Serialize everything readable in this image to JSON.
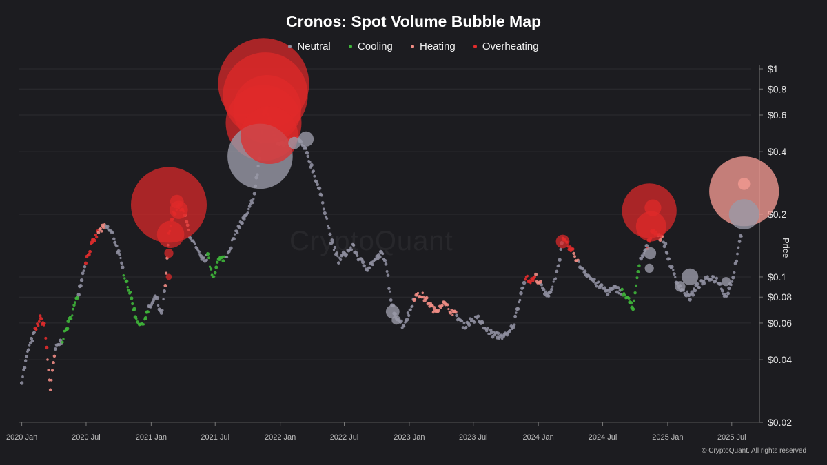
{
  "title": "Cronos: Spot Volume Bubble Map",
  "watermark": "CryptoQuant",
  "copyright": "© CryptoQuant. All rights reserved",
  "colors": {
    "background": "#1c1c20",
    "grid": "#2c2c31",
    "neutral": "#8e8e9e",
    "cooling": "#3fb53a",
    "heating": "#f08c84",
    "overheating": "#e22c2c"
  },
  "legend": [
    {
      "name": "Neutral",
      "key": "neutral"
    },
    {
      "name": "Cooling",
      "key": "cooling"
    },
    {
      "name": "Heating",
      "key": "heating"
    },
    {
      "name": "Overheating",
      "key": "overheating"
    }
  ],
  "chart_data": {
    "type": "scatter",
    "title": "Cronos: Spot Volume Bubble Map",
    "ylabel": "Price",
    "yscale": "log",
    "ylim": [
      0.02,
      1
    ],
    "xlim": [
      "2019-12-25",
      "2025-08-25"
    ],
    "grid": "horizontal",
    "legend_position": "top-center",
    "x_ticks": [
      {
        "label": "2020 Jan",
        "date": "2020-01-01"
      },
      {
        "label": "2020 Jul",
        "date": "2020-07-01"
      },
      {
        "label": "2021 Jan",
        "date": "2021-01-01"
      },
      {
        "label": "2021 Jul",
        "date": "2021-07-01"
      },
      {
        "label": "2022 Jan",
        "date": "2022-01-01"
      },
      {
        "label": "2022 Jul",
        "date": "2022-07-01"
      },
      {
        "label": "2023 Jan",
        "date": "2023-01-01"
      },
      {
        "label": "2023 Jul",
        "date": "2023-07-01"
      },
      {
        "label": "2024 Jan",
        "date": "2024-01-01"
      },
      {
        "label": "2024 Jul",
        "date": "2024-07-01"
      },
      {
        "label": "2025 Jan",
        "date": "2025-01-01"
      },
      {
        "label": "2025 Jul",
        "date": "2025-07-01"
      }
    ],
    "y_ticks": [
      {
        "label": "$1",
        "value": 1
      },
      {
        "label": "$0.8",
        "value": 0.8
      },
      {
        "label": "$0.6",
        "value": 0.6
      },
      {
        "label": "$0.4",
        "value": 0.4
      },
      {
        "label": "$0.2",
        "value": 0.2
      },
      {
        "label": "$0.1",
        "value": 0.1
      },
      {
        "label": "$0.08",
        "value": 0.08
      },
      {
        "label": "$0.06",
        "value": 0.06
      },
      {
        "label": "$0.04",
        "value": 0.04
      },
      {
        "label": "$0.02",
        "value": 0.02
      }
    ],
    "price_path": [
      [
        "2020-01-01",
        0.032,
        "neutral"
      ],
      [
        "2020-01-20",
        0.045,
        "neutral"
      ],
      [
        "2020-02-08",
        0.055,
        "overheating"
      ],
      [
        "2020-02-22",
        0.063,
        "overheating"
      ],
      [
        "2020-03-06",
        0.058,
        "overheating"
      ],
      [
        "2020-03-14",
        0.04,
        "heating"
      ],
      [
        "2020-03-22",
        0.029,
        "heating"
      ],
      [
        "2020-04-05",
        0.045,
        "neutral"
      ],
      [
        "2020-04-25",
        0.05,
        "cooling"
      ],
      [
        "2020-05-20",
        0.065,
        "cooling"
      ],
      [
        "2020-06-10",
        0.085,
        "neutral"
      ],
      [
        "2020-06-30",
        0.12,
        "overheating"
      ],
      [
        "2020-07-15",
        0.14,
        "overheating"
      ],
      [
        "2020-08-05",
        0.165,
        "heating"
      ],
      [
        "2020-08-25",
        0.175,
        "neutral"
      ],
      [
        "2020-09-15",
        0.16,
        "neutral"
      ],
      [
        "2020-10-01",
        0.13,
        "neutral"
      ],
      [
        "2020-10-15",
        0.105,
        "cooling"
      ],
      [
        "2020-11-01",
        0.085,
        "cooling"
      ],
      [
        "2020-11-20",
        0.063,
        "cooling"
      ],
      [
        "2020-12-05",
        0.058,
        "cooling"
      ],
      [
        "2020-12-25",
        0.07,
        "neutral"
      ],
      [
        "2021-01-15",
        0.08,
        "neutral"
      ],
      [
        "2021-01-30",
        0.065,
        "neutral"
      ],
      [
        "2021-02-10",
        0.09,
        "heating"
      ],
      [
        "2021-02-20",
        0.16,
        "overheating"
      ],
      [
        "2021-03-05",
        0.2,
        "overheating"
      ],
      [
        "2021-03-20",
        0.22,
        "overheating"
      ],
      [
        "2021-04-05",
        0.2,
        "heating"
      ],
      [
        "2021-04-20",
        0.16,
        "neutral"
      ],
      [
        "2021-05-05",
        0.14,
        "neutral"
      ],
      [
        "2021-05-25",
        0.12,
        "neutral"
      ],
      [
        "2021-06-10",
        0.125,
        "cooling"
      ],
      [
        "2021-06-25",
        0.1,
        "cooling"
      ],
      [
        "2021-07-10",
        0.12,
        "cooling"
      ],
      [
        "2021-08-01",
        0.125,
        "neutral"
      ],
      [
        "2021-08-20",
        0.15,
        "neutral"
      ],
      [
        "2021-09-10",
        0.18,
        "neutral"
      ],
      [
        "2021-10-01",
        0.2,
        "neutral"
      ],
      [
        "2021-10-20",
        0.25,
        "neutral"
      ],
      [
        "2021-11-05",
        0.4,
        "overheating"
      ],
      [
        "2021-11-15",
        0.6,
        "overheating"
      ],
      [
        "2021-11-25",
        0.65,
        "overheating"
      ],
      [
        "2021-12-10",
        0.5,
        "overheating"
      ],
      [
        "2021-12-25",
        0.45,
        "heating"
      ],
      [
        "2022-01-10",
        0.43,
        "neutral"
      ],
      [
        "2022-02-01",
        0.45,
        "neutral"
      ],
      [
        "2022-02-20",
        0.46,
        "neutral"
      ],
      [
        "2022-03-15",
        0.4,
        "neutral"
      ],
      [
        "2022-04-05",
        0.32,
        "neutral"
      ],
      [
        "2022-04-25",
        0.25,
        "neutral"
      ],
      [
        "2022-05-10",
        0.2,
        "neutral"
      ],
      [
        "2022-05-25",
        0.15,
        "neutral"
      ],
      [
        "2022-06-15",
        0.12,
        "neutral"
      ],
      [
        "2022-07-05",
        0.13,
        "neutral"
      ],
      [
        "2022-07-25",
        0.14,
        "neutral"
      ],
      [
        "2022-08-15",
        0.12,
        "neutral"
      ],
      [
        "2022-09-05",
        0.11,
        "neutral"
      ],
      [
        "2022-09-25",
        0.12,
        "neutral"
      ],
      [
        "2022-10-15",
        0.13,
        "neutral"
      ],
      [
        "2022-10-30",
        0.11,
        "neutral"
      ],
      [
        "2022-11-10",
        0.075,
        "neutral"
      ],
      [
        "2022-11-25",
        0.065,
        "neutral"
      ],
      [
        "2022-12-15",
        0.058,
        "neutral"
      ],
      [
        "2023-01-05",
        0.07,
        "neutral"
      ],
      [
        "2023-01-15",
        0.08,
        "heating"
      ],
      [
        "2023-02-05",
        0.082,
        "heating"
      ],
      [
        "2023-02-25",
        0.075,
        "heating"
      ],
      [
        "2023-03-15",
        0.068,
        "heating"
      ],
      [
        "2023-04-05",
        0.075,
        "heating"
      ],
      [
        "2023-04-25",
        0.07,
        "heating"
      ],
      [
        "2023-05-15",
        0.065,
        "neutral"
      ],
      [
        "2023-06-05",
        0.058,
        "neutral"
      ],
      [
        "2023-06-25",
        0.062,
        "neutral"
      ],
      [
        "2023-07-15",
        0.063,
        "neutral"
      ],
      [
        "2023-08-05",
        0.056,
        "neutral"
      ],
      [
        "2023-08-25",
        0.053,
        "neutral"
      ],
      [
        "2023-09-15",
        0.052,
        "neutral"
      ],
      [
        "2023-10-05",
        0.052,
        "neutral"
      ],
      [
        "2023-10-25",
        0.06,
        "neutral"
      ],
      [
        "2023-11-10",
        0.08,
        "neutral"
      ],
      [
        "2023-11-25",
        0.1,
        "overheating"
      ],
      [
        "2023-12-10",
        0.095,
        "overheating"
      ],
      [
        "2023-12-25",
        0.1,
        "heating"
      ],
      [
        "2024-01-10",
        0.09,
        "neutral"
      ],
      [
        "2024-01-25",
        0.08,
        "neutral"
      ],
      [
        "2024-02-10",
        0.09,
        "neutral"
      ],
      [
        "2024-02-25",
        0.11,
        "neutral"
      ],
      [
        "2024-03-10",
        0.15,
        "overheating"
      ],
      [
        "2024-03-25",
        0.14,
        "overheating"
      ],
      [
        "2024-04-10",
        0.13,
        "heating"
      ],
      [
        "2024-04-25",
        0.115,
        "neutral"
      ],
      [
        "2024-05-15",
        0.105,
        "neutral"
      ],
      [
        "2024-06-05",
        0.095,
        "neutral"
      ],
      [
        "2024-06-25",
        0.09,
        "neutral"
      ],
      [
        "2024-07-15",
        0.085,
        "neutral"
      ],
      [
        "2024-08-05",
        0.088,
        "neutral"
      ],
      [
        "2024-08-25",
        0.085,
        "cooling"
      ],
      [
        "2024-09-10",
        0.078,
        "cooling"
      ],
      [
        "2024-09-25",
        0.072,
        "cooling"
      ],
      [
        "2024-10-15",
        0.12,
        "neutral"
      ],
      [
        "2024-11-05",
        0.14,
        "overheating"
      ],
      [
        "2024-11-20",
        0.17,
        "overheating"
      ],
      [
        "2024-12-05",
        0.16,
        "heating"
      ],
      [
        "2024-12-20",
        0.15,
        "neutral"
      ],
      [
        "2025-01-05",
        0.12,
        "neutral"
      ],
      [
        "2025-01-25",
        0.095,
        "neutral"
      ],
      [
        "2025-02-15",
        0.085,
        "neutral"
      ],
      [
        "2025-03-05",
        0.08,
        "neutral"
      ],
      [
        "2025-03-25",
        0.09,
        "neutral"
      ],
      [
        "2025-04-15",
        0.095,
        "neutral"
      ],
      [
        "2025-05-05",
        0.1,
        "neutral"
      ],
      [
        "2025-05-25",
        0.095,
        "neutral"
      ],
      [
        "2025-06-15",
        0.08,
        "neutral"
      ],
      [
        "2025-07-05",
        0.1,
        "neutral"
      ],
      [
        "2025-07-20",
        0.14,
        "neutral"
      ],
      [
        "2025-08-01",
        0.17,
        "neutral"
      ]
    ],
    "bubbles": [
      [
        "2021-02-20",
        0.222,
        "overheating",
        5.0
      ],
      [
        "2021-02-25",
        0.16,
        "overheating",
        1.8
      ],
      [
        "2021-03-20",
        0.21,
        "overheating",
        1.2
      ],
      [
        "2021-03-15",
        0.23,
        "overheating",
        0.9
      ],
      [
        "2021-02-20",
        0.13,
        "overheating",
        0.6
      ],
      [
        "2021-02-20",
        0.1,
        "overheating",
        0.4
      ],
      [
        "2021-11-05",
        0.38,
        "neutral",
        4.3
      ],
      [
        "2021-11-15",
        0.85,
        "overheating",
        6.0
      ],
      [
        "2021-11-20",
        0.75,
        "overheating",
        5.6
      ],
      [
        "2021-11-15",
        0.55,
        "overheating",
        5.0
      ],
      [
        "2021-11-25",
        0.64,
        "overheating",
        4.5
      ],
      [
        "2021-12-01",
        0.48,
        "overheating",
        3.8
      ],
      [
        "2022-03-15",
        0.46,
        "neutral",
        1.0
      ],
      [
        "2022-02-10",
        0.44,
        "neutral",
        0.8
      ],
      [
        "2022-11-15",
        0.068,
        "neutral",
        0.9
      ],
      [
        "2022-11-25",
        0.062,
        "neutral",
        0.6
      ],
      [
        "2024-03-10",
        0.148,
        "overheating",
        0.9
      ],
      [
        "2024-11-10",
        0.208,
        "overheating",
        3.6
      ],
      [
        "2024-11-15",
        0.175,
        "overheating",
        2.0
      ],
      [
        "2024-11-20",
        0.215,
        "overheating",
        1.1
      ],
      [
        "2024-11-12",
        0.13,
        "neutral",
        0.8
      ],
      [
        "2024-11-10",
        0.11,
        "neutral",
        0.6
      ],
      [
        "2025-03-05",
        0.1,
        "neutral",
        1.1
      ],
      [
        "2025-02-05",
        0.09,
        "neutral",
        0.7
      ],
      [
        "2025-06-15",
        0.095,
        "neutral",
        0.6
      ],
      [
        "2025-08-05",
        0.258,
        "heating",
        4.6
      ],
      [
        "2025-08-05",
        0.2,
        "neutral",
        2.0
      ],
      [
        "2025-08-05",
        0.28,
        "heating",
        0.8
      ]
    ]
  }
}
